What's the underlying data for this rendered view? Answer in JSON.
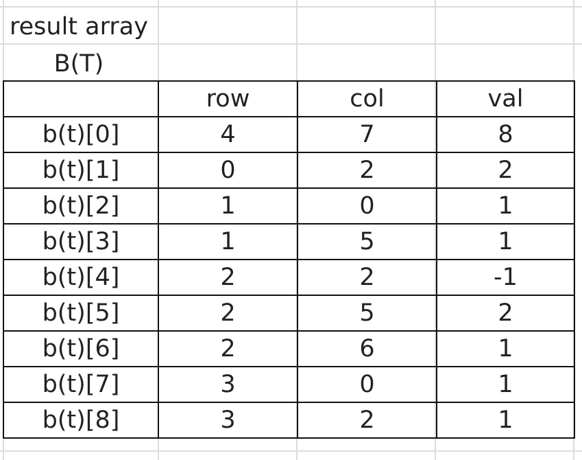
{
  "caption": {
    "line1": "result array",
    "line2": "B(T)"
  },
  "table": {
    "headers": [
      "",
      "row",
      "col",
      "val"
    ],
    "rows": [
      {
        "label": "b(t)[0]",
        "row": "4",
        "col": "7",
        "val": "8"
      },
      {
        "label": "b(t)[1]",
        "row": "0",
        "col": "2",
        "val": "2"
      },
      {
        "label": "b(t)[2]",
        "row": "1",
        "col": "0",
        "val": "1"
      },
      {
        "label": "b(t)[3]",
        "row": "1",
        "col": "5",
        "val": "1"
      },
      {
        "label": "b(t)[4]",
        "row": "2",
        "col": "2",
        "val": "-1"
      },
      {
        "label": "b(t)[5]",
        "row": "2",
        "col": "5",
        "val": "2"
      },
      {
        "label": "b(t)[6]",
        "row": "2",
        "col": "6",
        "val": "1"
      },
      {
        "label": "b(t)[7]",
        "row": "3",
        "col": "0",
        "val": "1"
      },
      {
        "label": "b(t)[8]",
        "row": "3",
        "col": "2",
        "val": "1"
      }
    ]
  },
  "colors": {
    "gridline": "#dcdcdc",
    "border": "#111111",
    "text": "#222222"
  }
}
